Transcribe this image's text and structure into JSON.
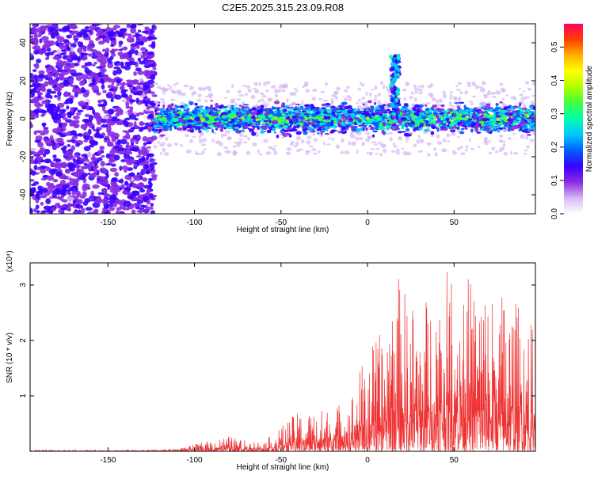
{
  "title": "C2E5.2025.315.23.09.R08",
  "chart_data": [
    {
      "type": "heatmap",
      "xlabel": "Height of straight line (km)",
      "ylabel": "Frequency (Hz)",
      "xlim": [
        -195,
        97
      ],
      "ylim": [
        -50,
        50
      ],
      "x_ticks": [
        -150,
        -100,
        -50,
        0,
        50
      ],
      "y_ticks": [
        -40,
        -20,
        0,
        20,
        40
      ],
      "colorbar": {
        "label": "Normalized spectral amplitude",
        "range": [
          0,
          0.57
        ],
        "ticks": [
          0.0,
          0.1,
          0.2,
          0.3,
          0.4,
          0.5
        ],
        "tick_labels": [
          "0.0",
          "0.1",
          "0.2",
          "0.3",
          "0.4",
          "0.5"
        ],
        "colors": [
          "#ffffff",
          "#d6b8f5",
          "#8a2be2",
          "#3a00ff",
          "#0060ff",
          "#00c8ff",
          "#00ffb0",
          "#40ff40",
          "#b0ff00",
          "#ffff00",
          "#ffb000",
          "#ff4000",
          "#ff0060"
        ]
      },
      "features": [
        {
          "region": "noise",
          "x_range": [
            -195,
            -123
          ],
          "y_range": [
            -50,
            50
          ],
          "amplitude": 0.08
        },
        {
          "region": "signal_band",
          "x_range": [
            -123,
            97
          ],
          "center_freq": 0,
          "half_width": 7,
          "amplitude": 0.25
        },
        {
          "region": "spike",
          "x": 16,
          "freq_peak": 33,
          "amplitude": 0.2
        }
      ]
    },
    {
      "type": "line",
      "xlabel": "Height of straight line (km)",
      "ylabel": "SNR (10 * v/v)",
      "y_multiplier": "(x10⁴)",
      "xlim": [
        -195,
        97
      ],
      "ylim": [
        0,
        3.4
      ],
      "x_ticks": [
        -150,
        -100,
        -50,
        0,
        50
      ],
      "y_ticks": [
        1,
        2,
        3
      ],
      "series": [
        {
          "color": "#ee3333",
          "envelope": {
            "x": [
              -195,
              -150,
              -120,
              -110,
              -100,
              -95,
              -90,
              -80,
              -75,
              -70,
              -60,
              -55,
              -50,
              -45,
              -40,
              -30,
              -20,
              -10,
              0,
              10,
              15,
              20,
              25,
              30,
              40,
              50,
              60,
              70,
              80,
              90,
              97
            ],
            "y": [
              0.02,
              0.02,
              0.03,
              0.05,
              0.12,
              0.18,
              0.2,
              0.28,
              0.22,
              0.2,
              0.18,
              0.3,
              0.45,
              0.6,
              0.7,
              0.75,
              0.8,
              1.0,
              1.9,
              2.2,
              3.4,
              3.0,
              2.8,
              2.6,
              3.2,
              3.3,
              3.2,
              3.0,
              2.9,
              2.6,
              2.2
            ]
          }
        }
      ]
    }
  ]
}
